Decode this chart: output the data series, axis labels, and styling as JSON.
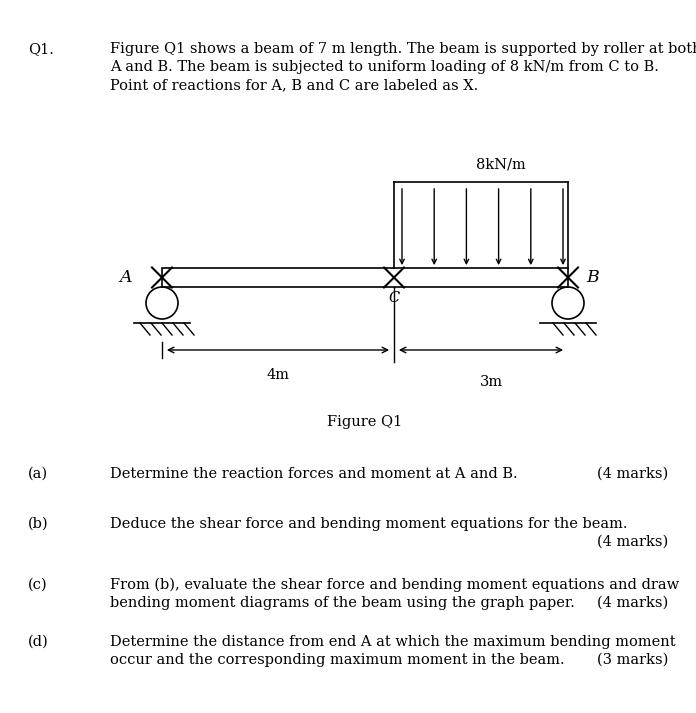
{
  "title_q": "Q1.",
  "q1_text_line1": "Figure Q1 shows a beam of 7 m length. The beam is supported by roller at both",
  "q1_text_line2": "A and B. The beam is subjected to uniform loading of 8 kN/m from C to B.",
  "q1_text_line3": "Point of reactions for A, B and C are labeled as X.",
  "figure_title": "Figure Q1",
  "load_label": "8kN/m",
  "dim_label_4m": "4m",
  "dim_label_3m": "3m",
  "label_A": "A",
  "label_B": "B",
  "label_C": "C",
  "part_a_label": "(a)",
  "part_a_text": "Determine the reaction forces and moment at A and B.",
  "part_a_marks": "(4 marks)",
  "part_b_label": "(b)",
  "part_b_text": "Deduce the shear force and bending moment equations for the beam.",
  "part_b_marks": "(4 marks)",
  "part_c_label": "(c)",
  "part_c_text_line1": "From (b), evaluate the shear force and bending moment equations and draw",
  "part_c_text_line2": "bending moment diagrams of the beam using the graph paper.",
  "part_c_marks": "(4 marks)",
  "part_d_label": "(d)",
  "part_d_text_line1": "Determine the distance from end A at which the maximum bending moment",
  "part_d_text_line2": "occur and the corresponding maximum moment in the beam.",
  "part_d_marks": "(3 marks)",
  "bg_color": "#ffffff",
  "text_color": "#000000",
  "font_family": "serif",
  "font_size": 10.5
}
